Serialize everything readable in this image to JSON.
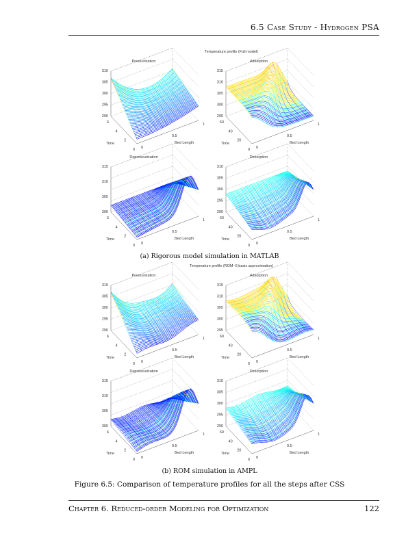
{
  "header": {
    "section": "6.5 Case Study - Hydrogen PSA"
  },
  "footer": {
    "chapter": "Chapter 6. Reduced-order Modeling for Optimization",
    "page": "122"
  },
  "figures": [
    {
      "title": "Temperature profile (Full model)",
      "caption": "(a) Rigorous model simulation in MATLAB",
      "subplots": [
        {
          "title": "Pressurization",
          "zticks": [
            "290",
            "295",
            "300",
            "305",
            "310"
          ],
          "tticks": [
            "6",
            "4",
            "2",
            "0"
          ],
          "bticks": [
            "0",
            "0.5",
            "1"
          ],
          "xlabel": "Bed Length",
          "ylabel": "Time",
          "kind": "press"
        },
        {
          "title": "Adsorption",
          "zticks": [
            "295",
            "300",
            "305",
            "310",
            "315"
          ],
          "tticks": [
            "60",
            "40",
            "20",
            "0"
          ],
          "bticks": [
            "0",
            "0.5",
            "1"
          ],
          "xlabel": "Bed Length",
          "ylabel": "Time",
          "kind": "ads"
        },
        {
          "title": "Depressurization",
          "zticks": [
            "300",
            "305",
            "310",
            "315"
          ],
          "tticks": [
            "6",
            "4",
            "2",
            "0"
          ],
          "bticks": [
            "0",
            "0.5",
            "1"
          ],
          "xlabel": "Bed Length",
          "ylabel": "Time",
          "kind": "dep"
        },
        {
          "title": "Desorption",
          "zticks": [
            "290",
            "295",
            "300",
            "305",
            "310"
          ],
          "tticks": [
            "60",
            "40",
            "20",
            "0"
          ],
          "bticks": [
            "0",
            "0.5",
            "1"
          ],
          "xlabel": "Bed Length",
          "ylabel": "Time",
          "kind": "des"
        }
      ]
    },
    {
      "title": "Temperature profile (ROM−5 basis approximation)",
      "caption": "(b) ROM simulation in AMPL",
      "subplots": [
        {
          "title": "Pressurization",
          "zticks": [
            "290",
            "295",
            "300",
            "305",
            "310"
          ],
          "tticks": [
            "6",
            "4",
            "2",
            "0"
          ],
          "bticks": [
            "0",
            "0.5",
            "1"
          ],
          "xlabel": "Bed Length",
          "ylabel": "Time",
          "kind": "press"
        },
        {
          "title": "Adsorption",
          "zticks": [
            "295",
            "300",
            "305",
            "310",
            "315"
          ],
          "tticks": [
            "60",
            "40",
            "20",
            "0"
          ],
          "bticks": [
            "0",
            "0.5",
            "1"
          ],
          "xlabel": "Bed Length",
          "ylabel": "Time",
          "kind": "ads"
        },
        {
          "title": "Depressurization",
          "zticks": [
            "300",
            "305",
            "310",
            "315"
          ],
          "tticks": [
            "6",
            "4",
            "2",
            "0"
          ],
          "bticks": [
            "0",
            "0.5",
            "1"
          ],
          "xlabel": "Bed Length",
          "ylabel": "Time",
          "kind": "dep"
        },
        {
          "title": "Desorption",
          "zticks": [
            "290",
            "295",
            "300",
            "305",
            "310"
          ],
          "tticks": [
            "60",
            "40",
            "20",
            "0"
          ],
          "bticks": [
            "0",
            "0.5",
            "1"
          ],
          "xlabel": "Bed Length",
          "ylabel": "Time",
          "kind": "des"
        }
      ]
    }
  ],
  "caption": "Figure 6.5: Comparison of temperature profiles for all the steps after CSS",
  "colormap": "jet"
}
